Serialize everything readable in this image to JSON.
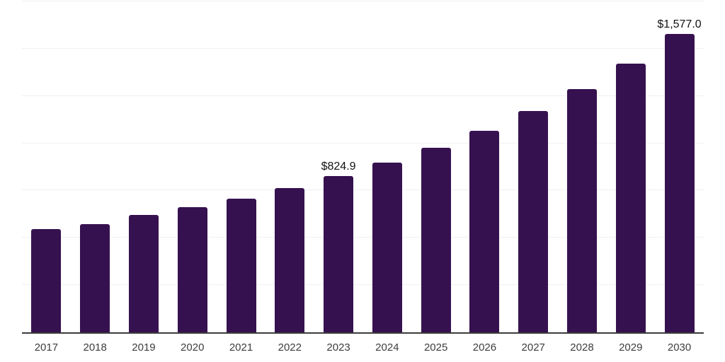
{
  "chart_data": {
    "type": "bar",
    "title": "",
    "xlabel": "",
    "ylabel": "",
    "categories": [
      "2017",
      "2018",
      "2019",
      "2020",
      "2021",
      "2022",
      "2023",
      "2024",
      "2025",
      "2026",
      "2027",
      "2028",
      "2029",
      "2030"
    ],
    "values": [
      547.2,
      573.5,
      621.9,
      662.5,
      707.5,
      763.0,
      824.9,
      896.1,
      974.4,
      1066.0,
      1170.2,
      1285.6,
      1422.3,
      1577.0
    ],
    "data_labels": [
      "",
      "",
      "",
      "",
      "",
      "",
      "$824.9",
      "",
      "",
      "",
      "",
      "",
      "",
      "$1,577.0"
    ],
    "ylim": [
      0,
      1750
    ],
    "gridlines": [
      250,
      500,
      750,
      1000,
      1250,
      1500,
      1750
    ],
    "grid": true,
    "legend_position": "none",
    "colors": {
      "bar": "#36114f",
      "gridline": "#f0f0f0",
      "axis": "#3c3c3c",
      "tick_label": "#3d3d3d",
      "value_label": "#111111"
    }
  }
}
